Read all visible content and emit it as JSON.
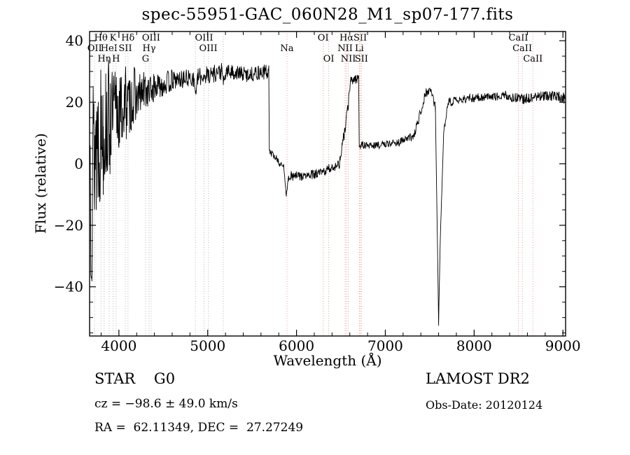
{
  "title": "spec-55951-GAC_060N28_M1_sp07-177.fits",
  "footer": {
    "class_label": "STAR    G0",
    "survey": "LAMOST DR2",
    "cz": "cz = −98.6 ± 49.0 km/s",
    "obs_date": "Obs-Date: 20120124",
    "coords": "RA =  62.11349, DEC =  27.27249"
  },
  "chart_data": {
    "type": "line",
    "title": "spec-55951-GAC_060N28_M1_sp07-177.fits",
    "xlabel": "Wavelength (Å)",
    "ylabel": "Flux (relative)",
    "xlim": [
      3670,
      9030
    ],
    "ylim": [
      -56,
      43
    ],
    "xticks": [
      4000,
      5000,
      6000,
      7000,
      8000,
      9000
    ],
    "yticks": [
      -40,
      -20,
      0,
      20,
      40
    ],
    "xminor": 200,
    "yminor": 5,
    "grid": false,
    "line_color": "#000000",
    "label_rows": [
      58,
      73,
      88
    ],
    "spectral_lines": [
      {
        "wl": 3727,
        "label": "OII",
        "row": 1,
        "color": "#b5b5b5"
      },
      {
        "wl": 3798,
        "label": "Hθ",
        "row": 0,
        "color": "#b5b5b5"
      },
      {
        "wl": 3835,
        "label": "Hη",
        "row": 2,
        "color": "#b5b5b5"
      },
      {
        "wl": 3889,
        "label": "HeI",
        "row": 1,
        "color": "#b5b5b5"
      },
      {
        "wl": 3934,
        "label": "K",
        "row": 0,
        "color": "#b5b5b5"
      },
      {
        "wl": 3968,
        "label": "H",
        "row": 2,
        "color": "#b5b5b5"
      },
      {
        "wl": 4072,
        "label": "SII",
        "row": 1,
        "color": "#b5b5b5"
      },
      {
        "wl": 4102,
        "label": "Hδ",
        "row": 0,
        "color": "#b5b5b5"
      },
      {
        "wl": 4300,
        "label": "G",
        "row": 2,
        "color": "#b5b5b5"
      },
      {
        "wl": 4340,
        "label": "Hγ",
        "row": 1,
        "color": "#b5b5b5"
      },
      {
        "wl": 4363,
        "label": "OIII",
        "row": 0,
        "color": "#b5b5b5"
      },
      {
        "wl": 4861,
        "label": "",
        "row": 0,
        "color": "#b5b5b5"
      },
      {
        "wl": 4959,
        "label": "OIII",
        "row": 0,
        "color": "#b5b5b5"
      },
      {
        "wl": 5007,
        "label": "OIII",
        "row": 1,
        "color": "#b5b5b5"
      },
      {
        "wl": 5175,
        "label": "",
        "row": 0,
        "color": "#b5b5b5"
      },
      {
        "wl": 5893,
        "label": "Na",
        "row": 1,
        "color": "#e09999"
      },
      {
        "wl": 6300,
        "label": "OI",
        "row": 0,
        "color": "#e09999"
      },
      {
        "wl": 6363,
        "label": "OI",
        "row": 2,
        "color": "#e09999"
      },
      {
        "wl": 6548,
        "label": "NII",
        "row": 1,
        "color": "#e09999"
      },
      {
        "wl": 6563,
        "label": "Hα",
        "row": 0,
        "color": "#e09999"
      },
      {
        "wl": 6583,
        "label": "NII",
        "row": 2,
        "color": "#e09999"
      },
      {
        "wl": 6708,
        "label": "Li",
        "row": 1,
        "color": "#e09999"
      },
      {
        "wl": 6717,
        "label": "SII",
        "row": 0,
        "color": "#e09999"
      },
      {
        "wl": 6731,
        "label": "SII",
        "row": 2,
        "color": "#e09999"
      },
      {
        "wl": 8498,
        "label": "CaII",
        "row": 0,
        "color": "#e09999"
      },
      {
        "wl": 8542,
        "label": "CaII",
        "row": 1,
        "color": "#e09999"
      },
      {
        "wl": 8662,
        "label": "CaII",
        "row": 2,
        "color": "#e09999"
      }
    ],
    "sample_step": 4,
    "seed": 13,
    "segments": [
      {
        "x0": 3676,
        "x1": 3702,
        "y0": 0,
        "y1": 8,
        "n": 45
      },
      {
        "x0": 3702,
        "x1": 3764,
        "y0": 2,
        "y1": 10,
        "n": 30
      },
      {
        "x0": 3764,
        "x1": 3824,
        "y0": 8,
        "y1": 13,
        "n": 24
      },
      {
        "x0": 3824,
        "x1": 3904,
        "y0": 11,
        "y1": 15,
        "n": 20
      },
      {
        "x0": 3904,
        "x1": 3992,
        "y0": 14,
        "y1": 18,
        "n": 16
      },
      {
        "x0": 3992,
        "x1": 4084,
        "y0": 16,
        "y1": 20,
        "n": 13
      },
      {
        "x0": 4084,
        "x1": 4184,
        "y0": 18,
        "y1": 22,
        "n": 10
      },
      {
        "x0": 4184,
        "x1": 4304,
        "y0": 21,
        "y1": 24,
        "n": 7
      },
      {
        "x0": 4304,
        "x1": 4424,
        "y0": 23,
        "y1": 25,
        "n": 5
      },
      {
        "x0": 4424,
        "x1": 4600,
        "y0": 25,
        "y1": 27,
        "n": 4
      },
      {
        "x0": 4600,
        "x1": 4840,
        "y0": 27,
        "y1": 28,
        "n": 3
      },
      {
        "x0": 4840,
        "x1": 4864,
        "y0": 28,
        "y1": 23,
        "n": 2
      },
      {
        "x0": 4864,
        "x1": 4888,
        "y0": 23,
        "y1": 28,
        "n": 2
      },
      {
        "x0": 4888,
        "x1": 5004,
        "y0": 28,
        "y1": 29,
        "n": 3
      },
      {
        "x0": 5004,
        "x1": 5160,
        "y0": 29,
        "y1": 30,
        "n": 3
      },
      {
        "x0": 5160,
        "x1": 5184,
        "y0": 30,
        "y1": 26,
        "n": 2
      },
      {
        "x0": 5184,
        "x1": 5208,
        "y0": 26,
        "y1": 30,
        "n": 2
      },
      {
        "x0": 5208,
        "x1": 5452,
        "y0": 30,
        "y1": 29,
        "n": 2.5
      },
      {
        "x0": 5452,
        "x1": 5688,
        "y0": 29,
        "y1": 30,
        "n": 2.5
      },
      {
        "x0": 5688,
        "x1": 5694,
        "y0": 30,
        "y1": 4,
        "n": 0.4
      },
      {
        "x0": 5694,
        "x1": 5800,
        "y0": 4,
        "y1": 1,
        "n": 1.1
      },
      {
        "x0": 5800,
        "x1": 5858,
        "y0": 0,
        "y1": -1,
        "n": 1.1
      },
      {
        "x0": 5858,
        "x1": 5884,
        "y0": -1,
        "y1": -10,
        "n": 0.8
      },
      {
        "x0": 5884,
        "x1": 5914,
        "y0": -10,
        "y1": -4,
        "n": 0.8
      },
      {
        "x0": 5914,
        "x1": 6104,
        "y0": -4,
        "y1": -4,
        "n": 1.6
      },
      {
        "x0": 6104,
        "x1": 6284,
        "y0": -4,
        "y1": -3,
        "n": 1.6
      },
      {
        "x0": 6284,
        "x1": 6344,
        "y0": -3,
        "y1": -2,
        "n": 1.6
      },
      {
        "x0": 6344,
        "x1": 6484,
        "y0": -2,
        "y1": 0,
        "n": 1.6
      },
      {
        "x0": 6484,
        "x1": 6560,
        "y0": 0,
        "y1": 14,
        "n": 2
      },
      {
        "x0": 6560,
        "x1": 6612,
        "y0": 14,
        "y1": 27,
        "n": 2
      },
      {
        "x0": 6612,
        "x1": 6700,
        "y0": 27,
        "y1": 28,
        "n": 1.6
      },
      {
        "x0": 6700,
        "x1": 6706,
        "y0": 28,
        "y1": 6,
        "n": 0.4
      },
      {
        "x0": 6706,
        "x1": 6904,
        "y0": 6,
        "y1": 6,
        "n": 1.2
      },
      {
        "x0": 6904,
        "x1": 7152,
        "y0": 6,
        "y1": 7,
        "n": 1.2
      },
      {
        "x0": 7152,
        "x1": 7324,
        "y0": 7,
        "y1": 9,
        "n": 1.3
      },
      {
        "x0": 7324,
        "x1": 7444,
        "y0": 9,
        "y1": 22,
        "n": 1.5
      },
      {
        "x0": 7444,
        "x1": 7524,
        "y0": 23,
        "y1": 24,
        "n": 1.5
      },
      {
        "x0": 7524,
        "x1": 7564,
        "y0": 23,
        "y1": 18,
        "n": 1.5
      },
      {
        "x0": 7564,
        "x1": 7600,
        "y0": 18,
        "y1": -52,
        "n": 0.8
      },
      {
        "x0": 7600,
        "x1": 7616,
        "y0": -52,
        "y1": -28,
        "n": 0.8
      },
      {
        "x0": 7616,
        "x1": 7656,
        "y0": -28,
        "y1": 10,
        "n": 0.8
      },
      {
        "x0": 7656,
        "x1": 7704,
        "y0": 10,
        "y1": 19,
        "n": 1.2
      },
      {
        "x0": 7704,
        "x1": 7904,
        "y0": 20,
        "y1": 21,
        "n": 1.4
      },
      {
        "x0": 7904,
        "x1": 8152,
        "y0": 21,
        "y1": 22,
        "n": 1.4
      },
      {
        "x0": 8152,
        "x1": 8352,
        "y0": 22,
        "y1": 22,
        "n": 1.4
      },
      {
        "x0": 8352,
        "x1": 8552,
        "y0": 22,
        "y1": 21,
        "n": 1.6
      },
      {
        "x0": 8552,
        "x1": 8752,
        "y0": 21,
        "y1": 22,
        "n": 1.6
      },
      {
        "x0": 8752,
        "x1": 8952,
        "y0": 22,
        "y1": 22,
        "n": 1.6
      },
      {
        "x0": 8952,
        "x1": 9026,
        "y0": 22,
        "y1": 21,
        "n": 1.8
      }
    ]
  }
}
